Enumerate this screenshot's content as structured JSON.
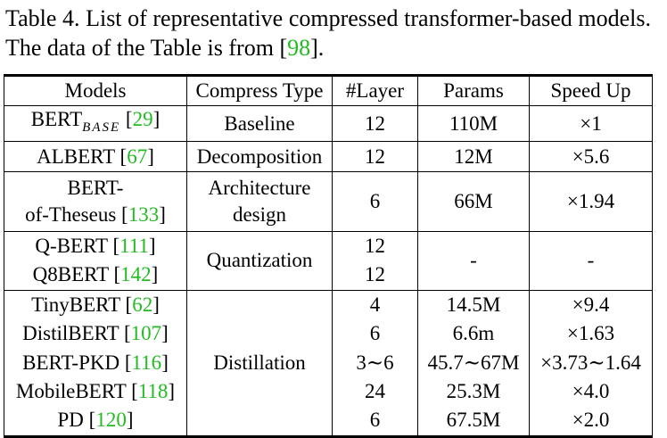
{
  "caption": {
    "text": "Table 4. List of representative compressed transformer-based models. The data of the Table is from ",
    "ref": "98",
    "end": "."
  },
  "table": {
    "headers": [
      "Models",
      "Compress Type",
      "#Layer",
      "Params",
      "Speed Up"
    ],
    "rows": {
      "bert_base": {
        "model": "BERT",
        "model_sub": "BASE",
        "ref": "29",
        "type": "Baseline",
        "layer": "12",
        "params": "110M",
        "speedup": "×1"
      },
      "albert": {
        "model": "ALBERT",
        "ref": "67",
        "type": "Decomposition",
        "layer": "12",
        "params": "12M",
        "speedup": "×5.6"
      },
      "bert_theseus": {
        "model_line1": "BERT-",
        "model_line2": "of-Theseus",
        "ref": "133",
        "type_line1": "Architecture",
        "type_line2": "design",
        "layer": "6",
        "params": "66M",
        "speedup": "×1.94"
      },
      "qbert": {
        "model": "Q-BERT",
        "ref": "111",
        "layer": "12"
      },
      "q8bert": {
        "model": "Q8BERT",
        "ref": "142",
        "layer": "12"
      },
      "quantization": {
        "type": "Quantization",
        "params": "-",
        "speedup": "-"
      },
      "tinybert": {
        "model": "TinyBERT",
        "ref": "62",
        "layer": "4",
        "params": "14.5M",
        "speedup": "×9.4"
      },
      "distilbert": {
        "model": "DistilBERT",
        "ref": "107",
        "layer": "6",
        "params": "6.6m",
        "speedup": "×1.63"
      },
      "bertpkd": {
        "model": "BERT-PKD",
        "ref": "116",
        "layer": "3∼6",
        "params": "45.7∼67M",
        "speedup": "×3.73∼1.64"
      },
      "mobilebert": {
        "model": "MobileBERT",
        "ref": "118",
        "layer": "24",
        "params": "25.3M",
        "speedup": "×4.0"
      },
      "pd": {
        "model": "PD",
        "ref": "120",
        "layer": "6",
        "params": "67.5M",
        "speedup": "×2.0"
      },
      "distillation": {
        "type": "Distillation"
      }
    }
  },
  "colors": {
    "citation": "#22bb22",
    "text": "#000000",
    "background": "#ffffff"
  }
}
